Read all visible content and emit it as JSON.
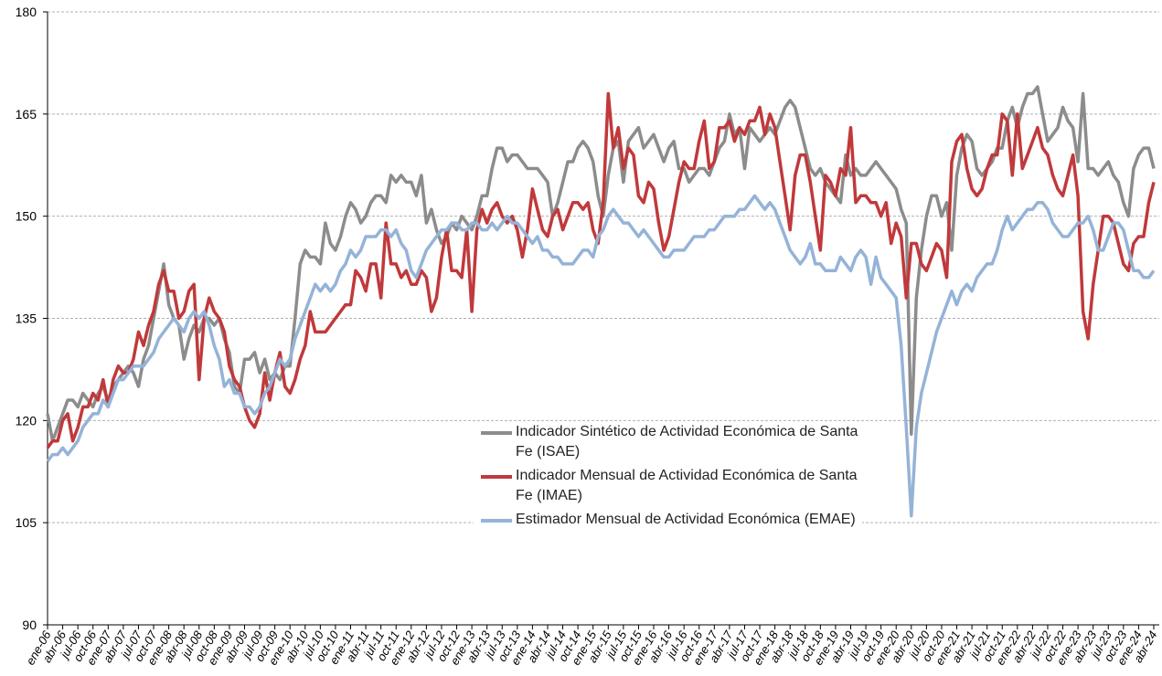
{
  "chart_data": {
    "type": "line",
    "categories": [
      "ene-06",
      null,
      null,
      "abr-06",
      null,
      null,
      "jul-06",
      null,
      null,
      "oct-06",
      null,
      null,
      "ene-07",
      null,
      null,
      "abr-07",
      null,
      null,
      "jul-07",
      null,
      null,
      "oct-07",
      null,
      null,
      "ene-08",
      null,
      null,
      "abr-08",
      null,
      null,
      "jul-08",
      null,
      null,
      "oct-08",
      null,
      null,
      "ene-09",
      null,
      null,
      "abr-09",
      null,
      null,
      "jul-09",
      null,
      null,
      "oct-09",
      null,
      null,
      "ene-10",
      null,
      null,
      "abr-10",
      null,
      null,
      "jul-10",
      null,
      null,
      "oct-10",
      null,
      null,
      "ene-11",
      null,
      null,
      "abr-11",
      null,
      null,
      "jul-11",
      null,
      null,
      "oct-11",
      null,
      null,
      "ene-12",
      null,
      null,
      "abr-12",
      null,
      null,
      "jul-12",
      null,
      null,
      "oct-12",
      null,
      null,
      "ene-13",
      null,
      null,
      "abr-13",
      null,
      null,
      "jul-13",
      null,
      null,
      "oct-13",
      null,
      null,
      "ene-14",
      null,
      null,
      "abr-14",
      null,
      null,
      "jul-14",
      null,
      null,
      "oct-14",
      null,
      null,
      "ene-15",
      null,
      null,
      "abr-15",
      null,
      null,
      "jul-15",
      null,
      null,
      "oct-15",
      null,
      null,
      "ene-16",
      null,
      null,
      "abr-16",
      null,
      null,
      "jul-16",
      null,
      null,
      "oct-16",
      null,
      null,
      "ene-17",
      null,
      null,
      "abr-17",
      null,
      null,
      "jul-17",
      null,
      null,
      "oct-17",
      null,
      null,
      "ene-18",
      null,
      null,
      "abr-18",
      null,
      null,
      "jul-18",
      null,
      null,
      "oct-18",
      null,
      null,
      "ene-19",
      null,
      null,
      "abr-19",
      null,
      null,
      "jul-19",
      null,
      null,
      "oct-19",
      null,
      null,
      "ene-20",
      null,
      null,
      "abr-20",
      null,
      null,
      "jul-20",
      null,
      null,
      "oct-20",
      null,
      null,
      "ene-21",
      null,
      null,
      "abr-21",
      null,
      null,
      "jul-21",
      null,
      null,
      "oct-21",
      null,
      null,
      "ene-22",
      null,
      null,
      "abr-22",
      null,
      null,
      "jul-22",
      null,
      null,
      "oct-22",
      null,
      null,
      "ene-23",
      null,
      null,
      "abr-23",
      null,
      null,
      "jul-23",
      null,
      null,
      "oct-23",
      null,
      null,
      "ene-24",
      null,
      null,
      "abr-24"
    ],
    "series": [
      {
        "name": "Indicador Sintético de Actividad Económica de Santa Fe (ISAE)",
        "color": "#8c8c8c",
        "values": [
          121,
          117,
          119,
          121,
          123,
          123,
          122,
          124,
          123,
          122,
          124,
          125,
          123,
          125,
          126,
          127,
          128,
          127,
          125,
          129,
          131,
          135,
          139,
          143,
          137,
          135,
          134,
          129,
          132,
          134,
          133,
          135,
          135,
          134,
          135,
          132,
          130,
          125,
          124,
          129,
          129,
          130,
          127,
          129,
          126,
          127,
          126,
          128,
          128,
          135,
          143,
          145,
          144,
          144,
          143,
          149,
          146,
          145,
          147,
          150,
          152,
          151,
          149,
          150,
          152,
          153,
          153,
          152,
          156,
          155,
          156,
          155,
          155,
          153,
          156,
          149,
          151,
          148,
          146,
          147,
          149,
          148,
          150,
          149,
          148,
          150,
          153,
          153,
          157,
          160,
          160,
          158,
          159,
          159,
          158,
          157,
          157,
          157,
          156,
          155,
          150,
          152,
          155,
          158,
          158,
          160,
          161,
          160,
          158,
          153,
          150,
          156,
          160,
          161,
          155,
          161,
          162,
          163,
          160,
          161,
          162,
          160,
          158,
          160,
          161,
          157,
          157,
          155,
          156,
          157,
          157,
          156,
          158,
          160,
          161,
          165,
          162,
          163,
          157,
          163,
          162,
          161,
          162,
          163,
          162,
          164,
          166,
          167,
          166,
          163,
          160,
          157,
          156,
          157,
          155,
          154,
          153,
          152,
          159,
          156,
          157,
          156,
          156,
          157,
          158,
          157,
          156,
          155,
          154,
          151,
          149,
          118,
          138,
          145,
          150,
          153,
          153,
          150,
          152,
          145,
          156,
          160,
          162,
          161,
          157,
          156,
          157,
          158,
          160,
          160,
          164,
          166,
          163,
          166,
          168,
          168,
          169,
          165,
          161,
          162,
          163,
          166,
          164,
          163,
          158,
          168,
          157,
          157,
          156,
          157,
          158,
          156,
          155,
          152,
          150,
          157,
          159,
          160,
          160,
          157
        ]
      },
      {
        "name": "Indicador Mensual de Actividad Económica de Santa Fe (IMAE)",
        "color": "#c0393b",
        "values": [
          116,
          117,
          117,
          120,
          121,
          117,
          119,
          122,
          122,
          124,
          123,
          126,
          122,
          126,
          128,
          127,
          127,
          129,
          133,
          131,
          134,
          136,
          140,
          142,
          139,
          139,
          135,
          136,
          139,
          140,
          126,
          135,
          138,
          136,
          135,
          133,
          128,
          126,
          125,
          122,
          120,
          119,
          121,
          127,
          123,
          127,
          130,
          125,
          124,
          126,
          129,
          131,
          136,
          133,
          133,
          133,
          134,
          135,
          136,
          137,
          137,
          142,
          141,
          139,
          143,
          143,
          138,
          149,
          143,
          143,
          141,
          142,
          140,
          140,
          142,
          141,
          136,
          138,
          144,
          148,
          142,
          142,
          141,
          148,
          136,
          148,
          151,
          149,
          151,
          152,
          150,
          149,
          150,
          148,
          144,
          148,
          154,
          151,
          148,
          147,
          150,
          151,
          148,
          150,
          152,
          152,
          151,
          152,
          148,
          146,
          152,
          168,
          160,
          163,
          157,
          160,
          159,
          153,
          152,
          155,
          154,
          149,
          145,
          147,
          151,
          155,
          158,
          157,
          157,
          161,
          164,
          157,
          158,
          163,
          163,
          164,
          161,
          163,
          162,
          164,
          164,
          166,
          162,
          165,
          163,
          158,
          153,
          148,
          156,
          159,
          159,
          155,
          150,
          145,
          156,
          155,
          153,
          157,
          156,
          163,
          152,
          153,
          153,
          152,
          152,
          150,
          152,
          146,
          149,
          147,
          138,
          146,
          146,
          143,
          142,
          144,
          146,
          145,
          141,
          158,
          161,
          162,
          157,
          154,
          153,
          154,
          157,
          159,
          159,
          165,
          164,
          156,
          165,
          157,
          159,
          161,
          163,
          160,
          159,
          156,
          154,
          153,
          156,
          159,
          153,
          136,
          132,
          140,
          145,
          150,
          150,
          149,
          146,
          143,
          142,
          146,
          147,
          147,
          152,
          155
        ]
      },
      {
        "name": "Estimador Mensual de Actividad Económica (EMAE)",
        "color": "#95b3d7",
        "values": [
          114,
          115,
          115,
          116,
          115,
          116,
          117,
          119,
          120,
          121,
          121,
          123,
          122,
          124,
          126,
          126,
          127,
          128,
          128,
          128,
          129,
          130,
          132,
          133,
          134,
          135,
          134,
          133,
          135,
          136,
          135,
          136,
          134,
          131,
          129,
          125,
          126,
          124,
          124,
          122,
          122,
          121,
          122,
          124,
          125,
          127,
          129,
          128,
          129,
          132,
          134,
          136,
          138,
          140,
          139,
          140,
          139,
          140,
          142,
          143,
          145,
          144,
          145,
          147,
          147,
          147,
          148,
          148,
          147,
          148,
          146,
          145,
          142,
          141,
          143,
          145,
          146,
          147,
          148,
          148,
          149,
          149,
          148,
          148,
          149,
          149,
          148,
          148,
          149,
          148,
          149,
          150,
          149,
          149,
          148,
          147,
          146,
          147,
          145,
          145,
          144,
          144,
          143,
          143,
          143,
          144,
          145,
          145,
          144,
          147,
          148,
          150,
          151,
          150,
          149,
          149,
          148,
          147,
          148,
          147,
          146,
          145,
          144,
          144,
          145,
          145,
          145,
          146,
          147,
          147,
          147,
          148,
          148,
          149,
          150,
          150,
          150,
          151,
          151,
          152,
          153,
          152,
          151,
          152,
          151,
          149,
          147,
          145,
          144,
          143,
          144,
          146,
          143,
          143,
          142,
          142,
          142,
          144,
          143,
          142,
          144,
          145,
          144,
          140,
          144,
          141,
          140,
          139,
          138,
          131,
          119,
          106,
          119,
          124,
          127,
          130,
          133,
          135,
          137,
          139,
          137,
          139,
          140,
          139,
          141,
          142,
          143,
          143,
          145,
          148,
          150,
          148,
          149,
          150,
          151,
          151,
          152,
          152,
          151,
          149,
          148,
          147,
          147,
          148,
          149,
          149,
          150,
          148,
          145,
          145,
          147,
          149,
          149,
          148,
          145,
          142,
          142,
          141,
          141,
          142
        ]
      }
    ],
    "ylim": [
      90,
      180
    ],
    "yticks": [
      90,
      105,
      120,
      135,
      150,
      165,
      180
    ],
    "grid": true
  }
}
